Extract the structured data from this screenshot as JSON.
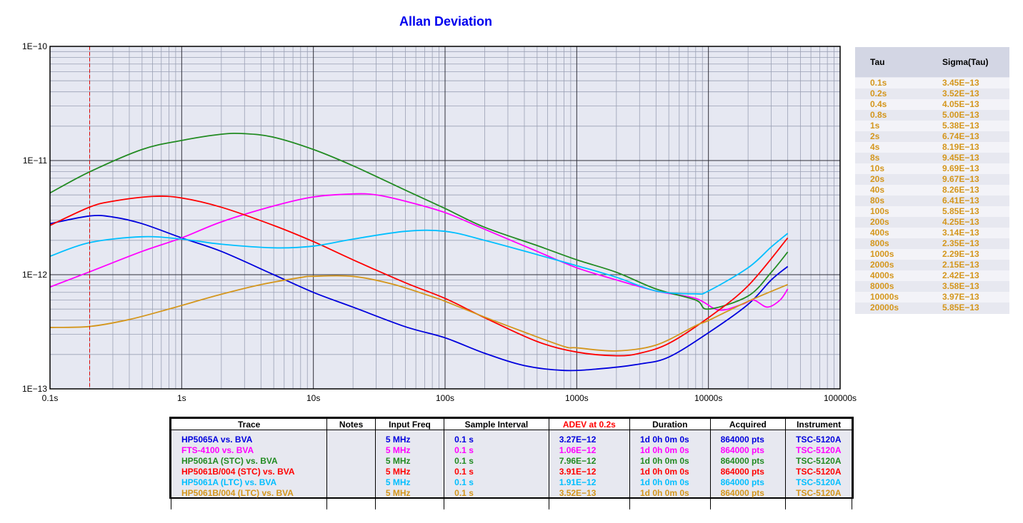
{
  "chart_data": {
    "type": "line",
    "title": "Allan Deviation",
    "xscale": "log",
    "yscale": "log",
    "xlim": [
      0.1,
      100000
    ],
    "ylim": [
      1e-13,
      1e-10
    ],
    "x_tick_labels": [
      "0.1s",
      "1s",
      "10s",
      "100s",
      "1000s",
      "10000s",
      "100000s"
    ],
    "y_tick_labels": [
      "1E−10",
      "1E−11",
      "1E−12",
      "1E−13"
    ],
    "grid": true,
    "marker_line": {
      "x": 0.2,
      "style": "dashed",
      "color": "#dd0000"
    },
    "series": [
      {
        "name": "HP5065A vs. BVA",
        "color": "#0000dd",
        "points": [
          [
            0.1,
            2.8e-12
          ],
          [
            0.2,
            3.27e-12
          ],
          [
            0.3,
            3.2e-12
          ],
          [
            0.5,
            2.8e-12
          ],
          [
            1,
            2.1e-12
          ],
          [
            2,
            1.6e-12
          ],
          [
            5,
            1e-12
          ],
          [
            10,
            7e-13
          ],
          [
            20,
            5.2e-13
          ],
          [
            50,
            3.5e-13
          ],
          [
            100,
            2.8e-13
          ],
          [
            200,
            2.05e-13
          ],
          [
            400,
            1.6e-13
          ],
          [
            800,
            1.45e-13
          ],
          [
            1500,
            1.5e-13
          ],
          [
            3000,
            1.65e-13
          ],
          [
            5000,
            1.9e-13
          ],
          [
            10000,
            3.1e-13
          ],
          [
            20000,
            5.5e-13
          ],
          [
            30000,
            9e-13
          ],
          [
            40000,
            1.18e-12
          ]
        ]
      },
      {
        "name": "FTS-4100 vs. BVA",
        "color": "#ff00ff",
        "points": [
          [
            0.1,
            7.8e-13
          ],
          [
            0.2,
            1.06e-12
          ],
          [
            0.5,
            1.6e-12
          ],
          [
            1,
            2.1e-12
          ],
          [
            2,
            2.9e-12
          ],
          [
            5,
            4e-12
          ],
          [
            10,
            4.8e-12
          ],
          [
            20,
            5.1e-12
          ],
          [
            30,
            5e-12
          ],
          [
            50,
            4.4e-12
          ],
          [
            100,
            3.5e-12
          ],
          [
            200,
            2.5e-12
          ],
          [
            500,
            1.6e-12
          ],
          [
            1000,
            1.15e-12
          ],
          [
            2000,
            9e-13
          ],
          [
            4000,
            7.2e-13
          ],
          [
            8000,
            6.2e-13
          ],
          [
            12000,
            4.9e-13
          ],
          [
            18000,
            5.5e-13
          ],
          [
            22000,
            6e-13
          ],
          [
            28000,
            5.2e-13
          ],
          [
            35000,
            6e-13
          ],
          [
            40000,
            7.5e-13
          ]
        ]
      },
      {
        "name": "HP5061A (STC) vs. BVA",
        "color": "#228b22",
        "points": [
          [
            0.1,
            5.2e-12
          ],
          [
            0.2,
            7.96e-12
          ],
          [
            0.5,
            1.25e-11
          ],
          [
            1,
            1.5e-11
          ],
          [
            2,
            1.7e-11
          ],
          [
            3,
            1.72e-11
          ],
          [
            5,
            1.6e-11
          ],
          [
            10,
            1.25e-11
          ],
          [
            20,
            9e-12
          ],
          [
            50,
            5.5e-12
          ],
          [
            100,
            3.8e-12
          ],
          [
            200,
            2.6e-12
          ],
          [
            500,
            1.8e-12
          ],
          [
            1000,
            1.35e-12
          ],
          [
            2000,
            1.05e-12
          ],
          [
            4000,
            7.5e-13
          ],
          [
            8000,
            6e-13
          ],
          [
            10000,
            5e-13
          ],
          [
            20000,
            6.5e-13
          ],
          [
            30000,
            1.05e-12
          ],
          [
            40000,
            1.58e-12
          ]
        ]
      },
      {
        "name": "HP5061B/004 (STC) vs. BVA",
        "color": "#ff0000",
        "points": [
          [
            0.1,
            2.7e-12
          ],
          [
            0.2,
            3.91e-12
          ],
          [
            0.3,
            4.4e-12
          ],
          [
            0.6,
            4.85e-12
          ],
          [
            1,
            4.7e-12
          ],
          [
            2,
            3.9e-12
          ],
          [
            5,
            2.7e-12
          ],
          [
            10,
            1.95e-12
          ],
          [
            20,
            1.35e-12
          ],
          [
            50,
            8.5e-13
          ],
          [
            100,
            6.2e-13
          ],
          [
            200,
            4.2e-13
          ],
          [
            500,
            2.6e-13
          ],
          [
            1000,
            2.1e-13
          ],
          [
            2000,
            1.95e-13
          ],
          [
            3000,
            2.05e-13
          ],
          [
            5000,
            2.5e-13
          ],
          [
            10000,
            4.2e-13
          ],
          [
            20000,
            8e-13
          ],
          [
            40000,
            2.1e-12
          ]
        ]
      },
      {
        "name": "HP5061A (LTC) vs. BVA",
        "color": "#00bfff",
        "points": [
          [
            0.1,
            1.45e-12
          ],
          [
            0.2,
            1.91e-12
          ],
          [
            0.5,
            2.15e-12
          ],
          [
            1,
            2.05e-12
          ],
          [
            2,
            1.85e-12
          ],
          [
            5,
            1.72e-12
          ],
          [
            10,
            1.78e-12
          ],
          [
            20,
            2.05e-12
          ],
          [
            50,
            2.4e-12
          ],
          [
            100,
            2.4e-12
          ],
          [
            200,
            2e-12
          ],
          [
            500,
            1.5e-12
          ],
          [
            1000,
            1.2e-12
          ],
          [
            2000,
            9.5e-13
          ],
          [
            4000,
            7.2e-13
          ],
          [
            8000,
            6.8e-13
          ],
          [
            10000,
            7.2e-13
          ],
          [
            20000,
            1.15e-12
          ],
          [
            30000,
            1.75e-12
          ],
          [
            40000,
            2.3e-12
          ]
        ]
      },
      {
        "name": "HP5061B/004 (LTC) vs. BVA",
        "color": "#d4961c",
        "points": [
          [
            0.1,
            3.45e-13
          ],
          [
            0.2,
            3.52e-13
          ],
          [
            0.4,
            4.05e-13
          ],
          [
            0.8,
            5e-13
          ],
          [
            1,
            5.38e-13
          ],
          [
            2,
            6.74e-13
          ],
          [
            4,
            8.19e-13
          ],
          [
            8,
            9.45e-13
          ],
          [
            10,
            9.69e-13
          ],
          [
            20,
            9.67e-13
          ],
          [
            40,
            8.26e-13
          ],
          [
            80,
            6.41e-13
          ],
          [
            100,
            5.85e-13
          ],
          [
            200,
            4.25e-13
          ],
          [
            400,
            3.14e-13
          ],
          [
            800,
            2.35e-13
          ],
          [
            1000,
            2.29e-13
          ],
          [
            2000,
            2.15e-13
          ],
          [
            4000,
            2.42e-13
          ],
          [
            8000,
            3.58e-13
          ],
          [
            10000,
            3.97e-13
          ],
          [
            20000,
            5.85e-13
          ],
          [
            40000,
            8.2e-13
          ]
        ]
      }
    ]
  },
  "tau_table": {
    "headers": [
      "Tau",
      "Sigma(Tau)"
    ],
    "color": "#d4961c",
    "rows": [
      [
        "0.1s",
        "3.45E−13"
      ],
      [
        "0.2s",
        "3.52E−13"
      ],
      [
        "0.4s",
        "4.05E−13"
      ],
      [
        "0.8s",
        "5.00E−13"
      ],
      [
        "1s",
        "5.38E−13"
      ],
      [
        "2s",
        "6.74E−13"
      ],
      [
        "4s",
        "8.19E−13"
      ],
      [
        "8s",
        "9.45E−13"
      ],
      [
        "10s",
        "9.69E−13"
      ],
      [
        "20s",
        "9.67E−13"
      ],
      [
        "40s",
        "8.26E−13"
      ],
      [
        "80s",
        "6.41E−13"
      ],
      [
        "100s",
        "5.85E−13"
      ],
      [
        "200s",
        "4.25E−13"
      ],
      [
        "400s",
        "3.14E−13"
      ],
      [
        "800s",
        "2.35E−13"
      ],
      [
        "1000s",
        "2.29E−13"
      ],
      [
        "2000s",
        "2.15E−13"
      ],
      [
        "4000s",
        "2.42E−13"
      ],
      [
        "8000s",
        "3.58E−13"
      ],
      [
        "10000s",
        "3.97E−13"
      ],
      [
        "20000s",
        "5.85E−13"
      ]
    ]
  },
  "trace_table": {
    "headers": [
      "Trace",
      "Notes",
      "Input Freq",
      "Sample Interval",
      "ADEV at 0.2s",
      "Duration",
      "Acquired",
      "Instrument"
    ],
    "rows": [
      {
        "color": "#0000dd",
        "cells": [
          "HP5065A vs. BVA",
          "",
          "5 MHz",
          "0.1 s",
          "3.27E−12",
          "1d 0h 0m 0s",
          "864000 pts",
          "TSC-5120A"
        ]
      },
      {
        "color": "#ff00ff",
        "cells": [
          "FTS-4100 vs. BVA",
          "",
          "5 MHz",
          "0.1 s",
          "1.06E−12",
          "1d 0h 0m 0s",
          "864000 pts",
          "TSC-5120A"
        ]
      },
      {
        "color": "#228b22",
        "cells": [
          "HP5061A (STC) vs. BVA",
          "",
          "5 MHz",
          "0.1 s",
          "7.96E−12",
          "1d 0h 0m 0s",
          "864000 pts",
          "TSC-5120A"
        ]
      },
      {
        "color": "#ff0000",
        "cells": [
          "HP5061B/004 (STC) vs. BVA",
          "",
          "5 MHz",
          "0.1 s",
          "3.91E−12",
          "1d 0h 0m 0s",
          "864000 pts",
          "TSC-5120A"
        ]
      },
      {
        "color": "#00bfff",
        "cells": [
          "HP5061A (LTC) vs. BVA",
          "",
          "5 MHz",
          "0.1 s",
          "1.91E−12",
          "1d 0h 0m 0s",
          "864000 pts",
          "TSC-5120A"
        ]
      },
      {
        "color": "#d4961c",
        "cells": [
          "HP5061B/004 (LTC) vs. BVA",
          "",
          "5 MHz",
          "0.1 s",
          "3.52E−13",
          "1d 0h 0m 0s",
          "864000 pts",
          "TSC-5120A"
        ]
      }
    ]
  }
}
